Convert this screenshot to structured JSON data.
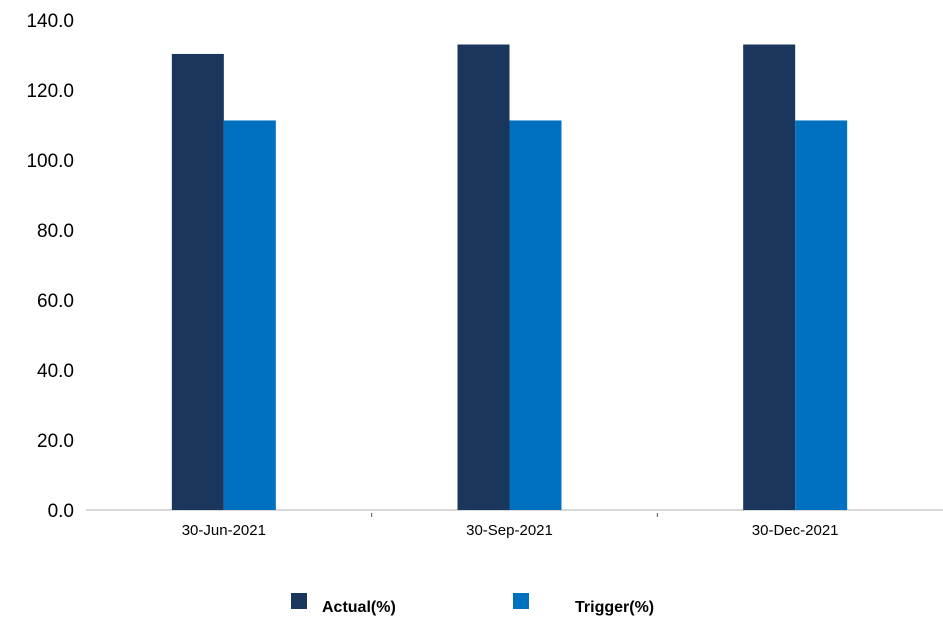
{
  "chart_data": {
    "type": "bar",
    "categories": [
      "30-Jun-2021",
      "30-Sep-2021",
      "30-Dec-2021"
    ],
    "series": [
      {
        "name": "Actual(%)",
        "values": [
          130.3,
          133.0,
          133.0
        ],
        "color": "#1a365d"
      },
      {
        "name": "Trigger(%)",
        "values": [
          111.3,
          111.3,
          111.3
        ],
        "color": "#0070c0"
      }
    ],
    "yticks": [
      "0.0",
      "20.0",
      "40.0",
      "60.0",
      "80.0",
      "100.0",
      "120.0",
      "140.0"
    ],
    "ylim": [
      0,
      140
    ],
    "grid": false,
    "legend_position": "bottom"
  }
}
